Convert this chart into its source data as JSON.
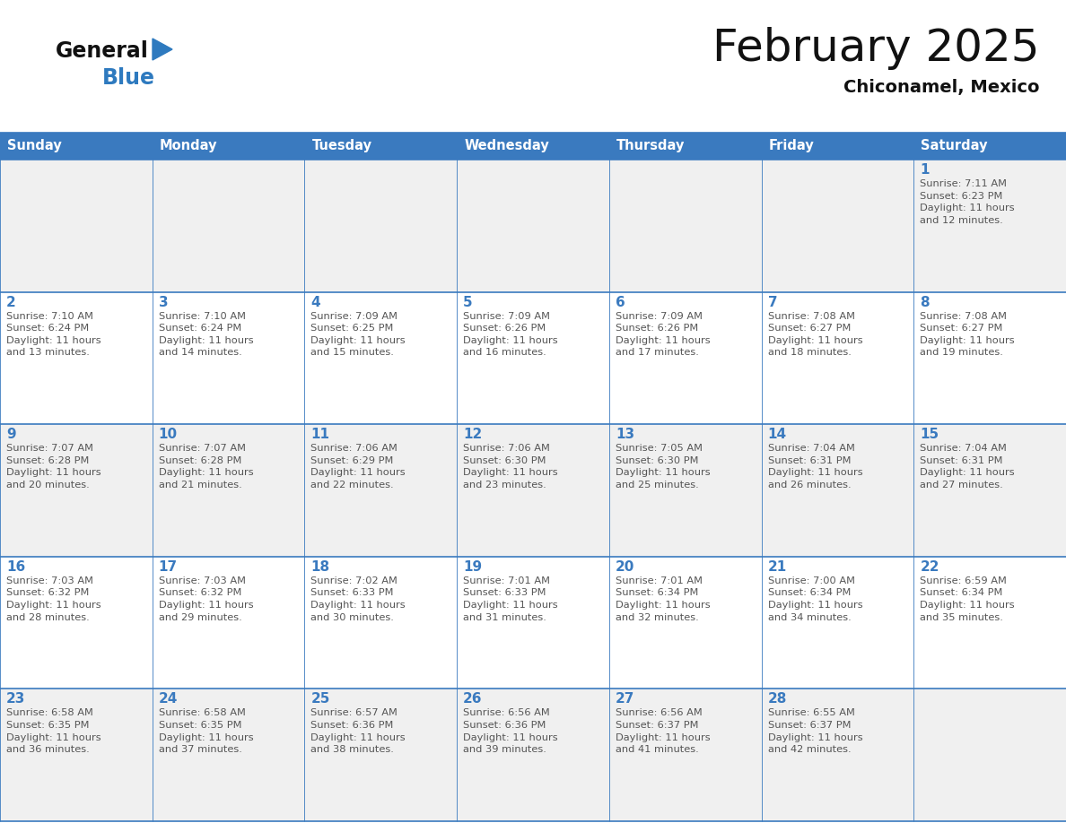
{
  "title": "February 2025",
  "subtitle": "Chiconamel, Mexico",
  "header_bg": "#3a7abf",
  "header_text_color": "#ffffff",
  "day_names": [
    "Sunday",
    "Monday",
    "Tuesday",
    "Wednesday",
    "Thursday",
    "Friday",
    "Saturday"
  ],
  "row_bg": [
    "#f0f0f0",
    "#ffffff",
    "#f0f0f0",
    "#ffffff",
    "#f0f0f0"
  ],
  "cell_border_color": "#3a7abf",
  "day_num_color": "#3a7abf",
  "info_text_color": "#555555",
  "logo_general_color": "#111111",
  "logo_blue_color": "#2e7abf",
  "logo_triangle_color": "#2e7abf",
  "title_color": "#111111",
  "subtitle_color": "#111111",
  "calendar_data": [
    [
      null,
      null,
      null,
      null,
      null,
      null,
      {
        "day": 1,
        "rise": "7:11 AM",
        "set": "6:23 PM",
        "daylight": "11 hours\nand 12 minutes."
      }
    ],
    [
      {
        "day": 2,
        "rise": "7:10 AM",
        "set": "6:24 PM",
        "daylight": "11 hours\nand 13 minutes."
      },
      {
        "day": 3,
        "rise": "7:10 AM",
        "set": "6:24 PM",
        "daylight": "11 hours\nand 14 minutes."
      },
      {
        "day": 4,
        "rise": "7:09 AM",
        "set": "6:25 PM",
        "daylight": "11 hours\nand 15 minutes."
      },
      {
        "day": 5,
        "rise": "7:09 AM",
        "set": "6:26 PM",
        "daylight": "11 hours\nand 16 minutes."
      },
      {
        "day": 6,
        "rise": "7:09 AM",
        "set": "6:26 PM",
        "daylight": "11 hours\nand 17 minutes."
      },
      {
        "day": 7,
        "rise": "7:08 AM",
        "set": "6:27 PM",
        "daylight": "11 hours\nand 18 minutes."
      },
      {
        "day": 8,
        "rise": "7:08 AM",
        "set": "6:27 PM",
        "daylight": "11 hours\nand 19 minutes."
      }
    ],
    [
      {
        "day": 9,
        "rise": "7:07 AM",
        "set": "6:28 PM",
        "daylight": "11 hours\nand 20 minutes."
      },
      {
        "day": 10,
        "rise": "7:07 AM",
        "set": "6:28 PM",
        "daylight": "11 hours\nand 21 minutes."
      },
      {
        "day": 11,
        "rise": "7:06 AM",
        "set": "6:29 PM",
        "daylight": "11 hours\nand 22 minutes."
      },
      {
        "day": 12,
        "rise": "7:06 AM",
        "set": "6:30 PM",
        "daylight": "11 hours\nand 23 minutes."
      },
      {
        "day": 13,
        "rise": "7:05 AM",
        "set": "6:30 PM",
        "daylight": "11 hours\nand 25 minutes."
      },
      {
        "day": 14,
        "rise": "7:04 AM",
        "set": "6:31 PM",
        "daylight": "11 hours\nand 26 minutes."
      },
      {
        "day": 15,
        "rise": "7:04 AM",
        "set": "6:31 PM",
        "daylight": "11 hours\nand 27 minutes."
      }
    ],
    [
      {
        "day": 16,
        "rise": "7:03 AM",
        "set": "6:32 PM",
        "daylight": "11 hours\nand 28 minutes."
      },
      {
        "day": 17,
        "rise": "7:03 AM",
        "set": "6:32 PM",
        "daylight": "11 hours\nand 29 minutes."
      },
      {
        "day": 18,
        "rise": "7:02 AM",
        "set": "6:33 PM",
        "daylight": "11 hours\nand 30 minutes."
      },
      {
        "day": 19,
        "rise": "7:01 AM",
        "set": "6:33 PM",
        "daylight": "11 hours\nand 31 minutes."
      },
      {
        "day": 20,
        "rise": "7:01 AM",
        "set": "6:34 PM",
        "daylight": "11 hours\nand 32 minutes."
      },
      {
        "day": 21,
        "rise": "7:00 AM",
        "set": "6:34 PM",
        "daylight": "11 hours\nand 34 minutes."
      },
      {
        "day": 22,
        "rise": "6:59 AM",
        "set": "6:34 PM",
        "daylight": "11 hours\nand 35 minutes."
      }
    ],
    [
      {
        "day": 23,
        "rise": "6:58 AM",
        "set": "6:35 PM",
        "daylight": "11 hours\nand 36 minutes."
      },
      {
        "day": 24,
        "rise": "6:58 AM",
        "set": "6:35 PM",
        "daylight": "11 hours\nand 37 minutes."
      },
      {
        "day": 25,
        "rise": "6:57 AM",
        "set": "6:36 PM",
        "daylight": "11 hours\nand 38 minutes."
      },
      {
        "day": 26,
        "rise": "6:56 AM",
        "set": "6:36 PM",
        "daylight": "11 hours\nand 39 minutes."
      },
      {
        "day": 27,
        "rise": "6:56 AM",
        "set": "6:37 PM",
        "daylight": "11 hours\nand 41 minutes."
      },
      {
        "day": 28,
        "rise": "6:55 AM",
        "set": "6:37 PM",
        "daylight": "11 hours\nand 42 minutes."
      },
      null
    ]
  ],
  "fig_width": 11.88,
  "fig_height": 9.18,
  "dpi": 100
}
